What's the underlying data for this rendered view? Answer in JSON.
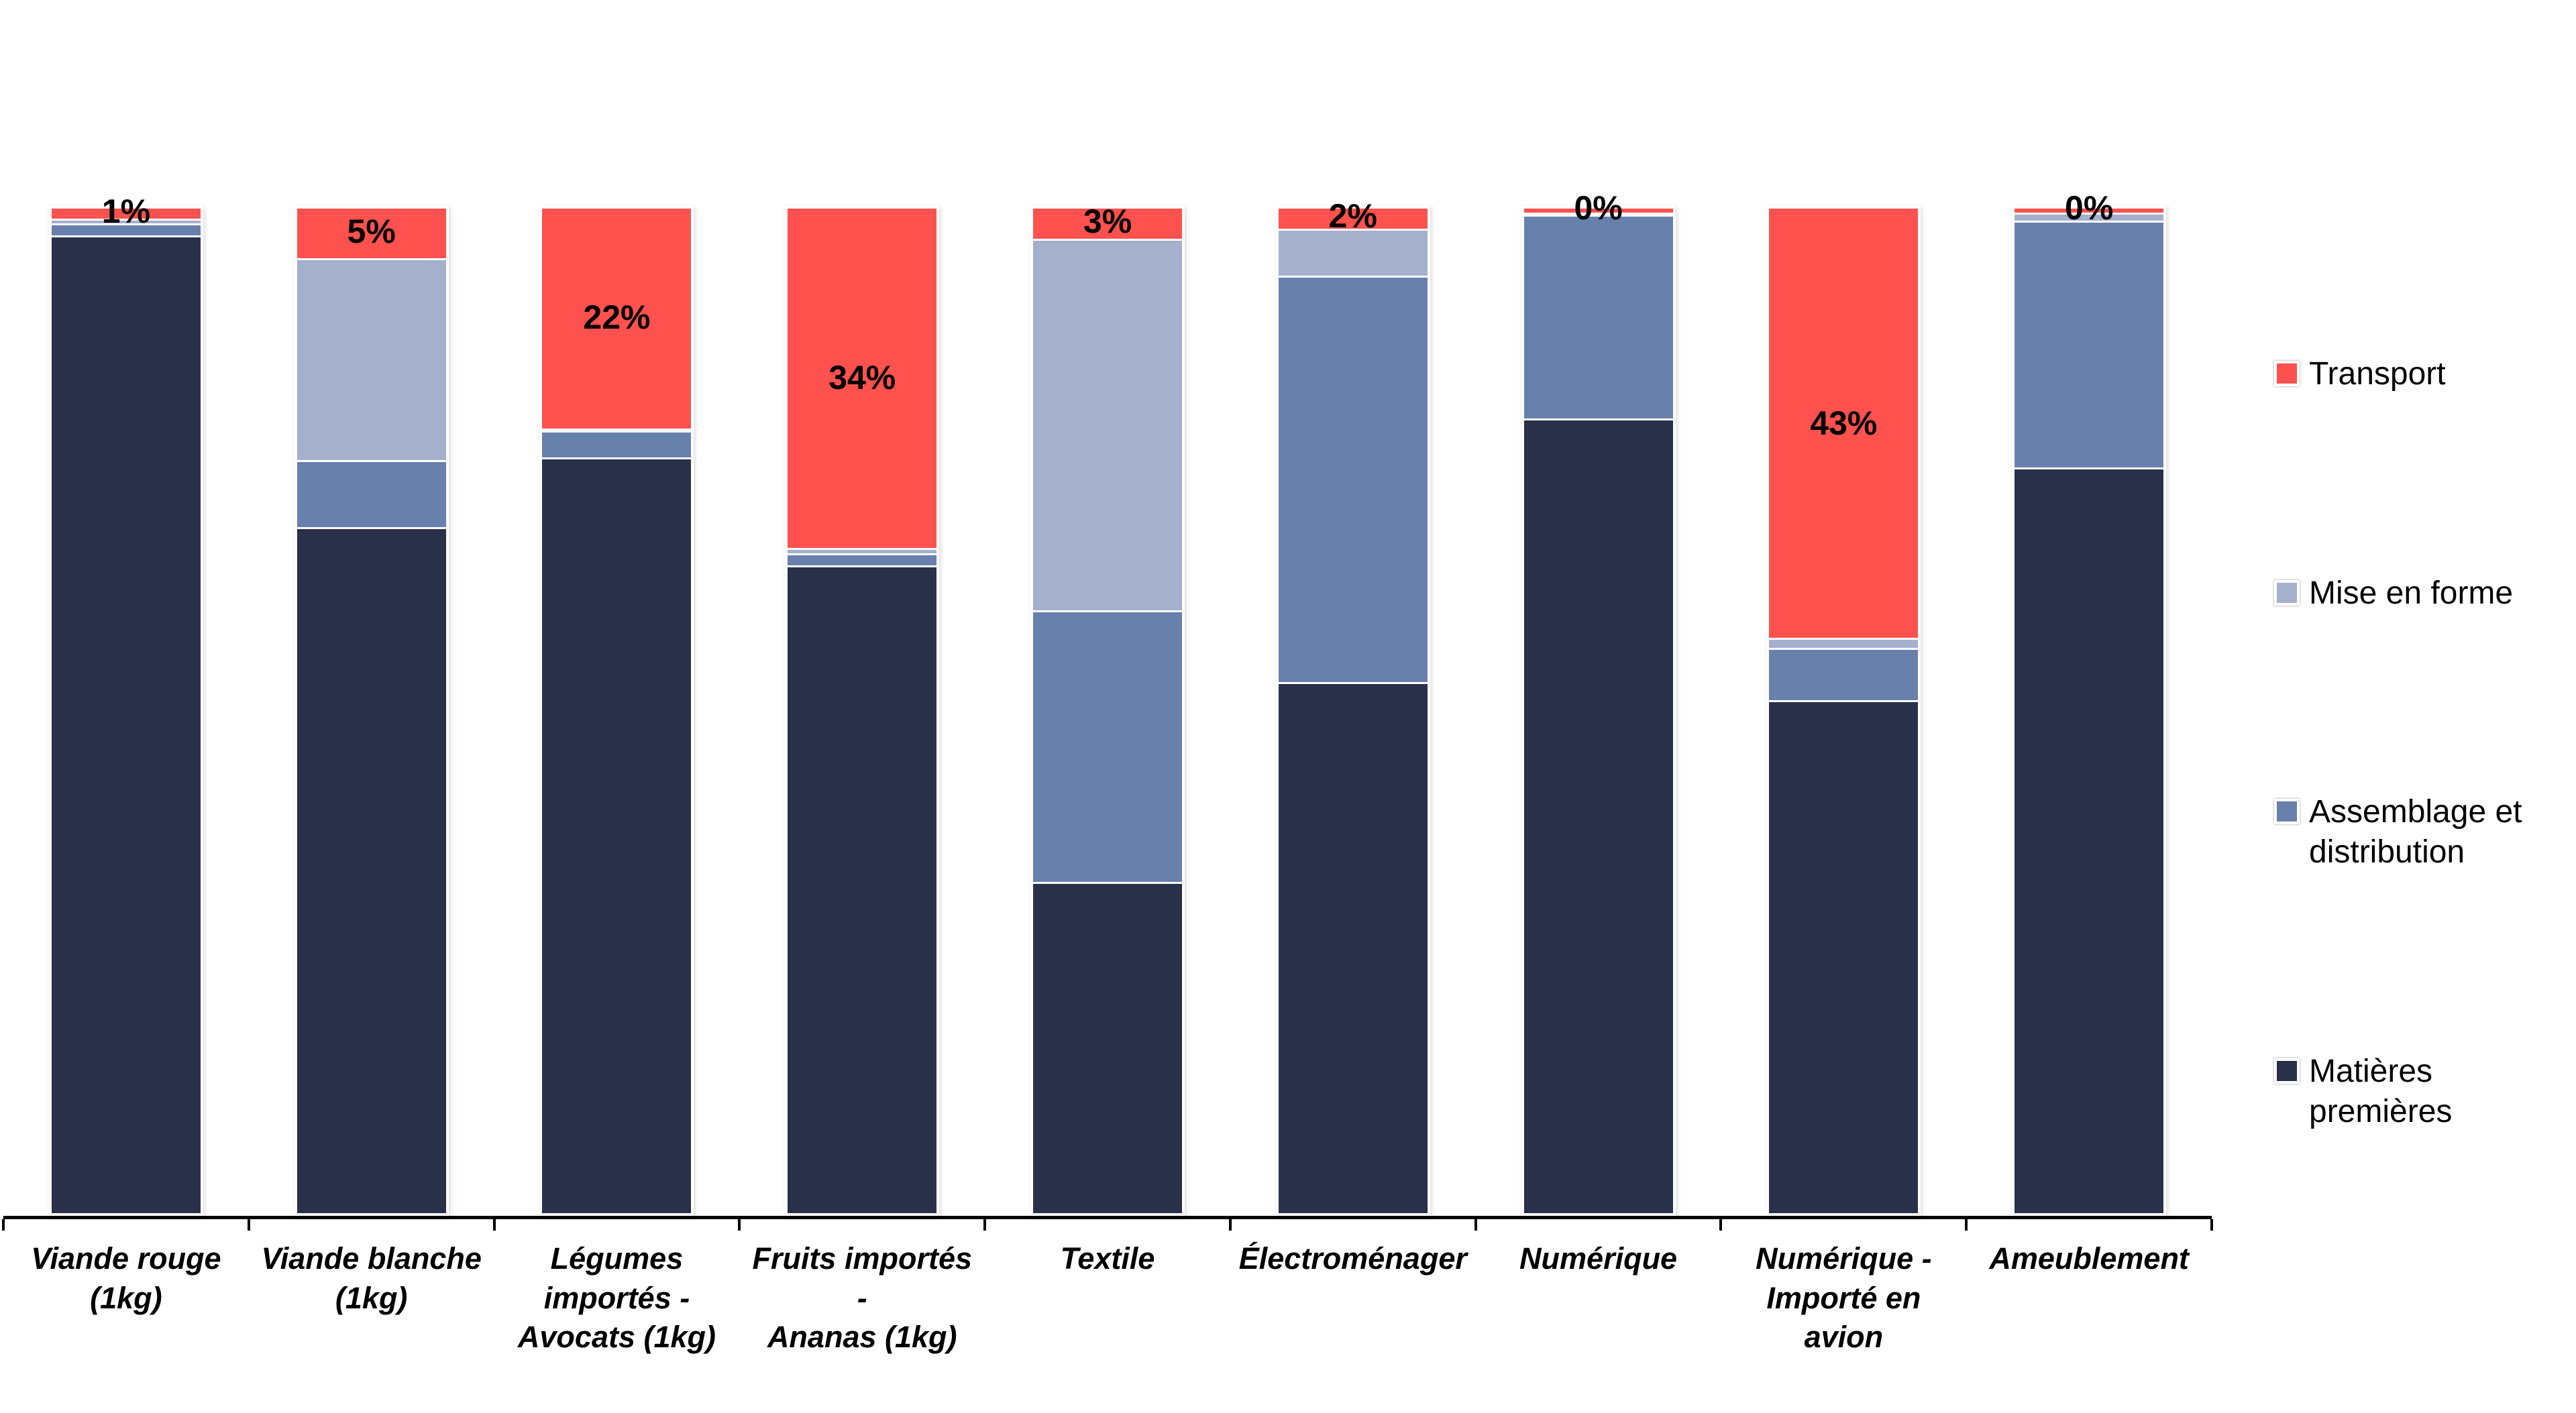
{
  "background_color": "#FFFFFF",
  "axis_color": "#000000",
  "chart_data": {
    "type": "bar",
    "variant": "stacked-100-percent-column",
    "title": "",
    "xlabel": "",
    "ylabel": "",
    "ylim": [
      0,
      100
    ],
    "grid": false,
    "legend_position": "right",
    "categories": [
      "Viande rouge\n(1kg)",
      "Viande blanche\n(1kg)",
      "Légumes\nimportés -\nAvocats (1kg)",
      "Fruits importés -\nAnanas (1kg)",
      "Textile",
      "Électroménager",
      "Numérique",
      "Numérique -\nImporté en\navion",
      "Ameublement"
    ],
    "stack_order_top_to_bottom": [
      "Transport",
      "Mise en forme",
      "Assemblage et distribution",
      "Matières premières"
    ],
    "series": [
      {
        "name": "Transport",
        "color": "#FF514D",
        "values": [
          1,
          5,
          22,
          34,
          3,
          2,
          0.4,
          43,
          0.4
        ]
      },
      {
        "name": "Mise en forme",
        "color": "#A4B0CC",
        "values": [
          0.3,
          20,
          0,
          0.3,
          37,
          4.5,
          0,
          0.8,
          0.6
        ]
      },
      {
        "name": "Assemblage et distribution",
        "color": "#6880AC",
        "values": [
          1,
          6.5,
          2.5,
          1,
          27,
          40.5,
          20.2,
          5,
          24.5
        ]
      },
      {
        "name": "Matières premières",
        "color": "#28304A",
        "values": [
          97.7,
          68.5,
          75.5,
          64.7,
          33,
          53,
          79.4,
          51.2,
          74.5
        ]
      }
    ],
    "data_labels": {
      "series": "Transport",
      "values": [
        "1%",
        "5%",
        "22%",
        "34%",
        "3%",
        "2%",
        "0%",
        "43%",
        "0%"
      ]
    }
  },
  "legend": {
    "items": [
      {
        "label": "Transport",
        "color": "#FF514D"
      },
      {
        "label": "Mise en forme",
        "color": "#A4B0CC"
      },
      {
        "label": "Assemblage et\ndistribution",
        "color": "#6880AC"
      },
      {
        "label": "Matières\npremières",
        "color": "#28304A"
      }
    ]
  }
}
